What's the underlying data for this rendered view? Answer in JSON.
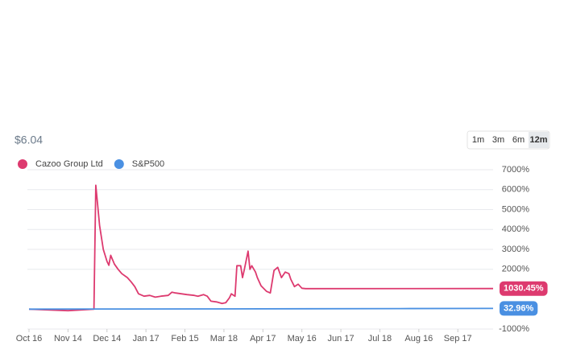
{
  "chart_data": {
    "type": "line",
    "price": "$6.04",
    "ranges": [
      "1m",
      "3m",
      "6m",
      "12m"
    ],
    "active_range": 3,
    "series": [
      {
        "name": "Cazoo Group Ltd",
        "color": "#dd3a6f",
        "x": [
          0,
          21,
          35,
          36,
          38,
          40,
          42,
          43,
          44,
          46,
          48,
          50,
          53,
          55,
          57,
          59,
          62,
          65,
          68,
          71,
          75,
          77,
          79,
          82,
          85,
          89,
          91,
          94,
          96,
          98,
          101,
          104,
          106,
          108,
          109,
          111,
          112,
          114,
          115,
          116,
          118,
          119,
          120,
          122,
          123,
          125,
          128,
          130,
          132,
          134,
          136,
          138,
          140,
          141,
          143,
          145,
          147,
          149,
          250
        ],
        "values": [
          0,
          -80,
          0,
          6220,
          4200,
          3000,
          2400,
          2200,
          2700,
          2260,
          2000,
          1780,
          1580,
          1370,
          1130,
          770,
          650,
          690,
          600,
          650,
          690,
          850,
          810,
          770,
          730,
          690,
          650,
          730,
          650,
          400,
          360,
          280,
          320,
          570,
          770,
          650,
          2180,
          2180,
          1580,
          2000,
          2910,
          2000,
          2180,
          1860,
          1580,
          1170,
          890,
          810,
          1940,
          2100,
          1580,
          1860,
          1780,
          1500,
          1130,
          1250,
          1050,
          1030,
          1030.45
        ],
        "end_label": "1030.45%"
      },
      {
        "name": "S&P500",
        "color": "#4a90e2",
        "x": [
          0,
          50,
          100,
          150,
          200,
          250
        ],
        "values": [
          0,
          5,
          12,
          18,
          25,
          32.96
        ],
        "end_label": "32.96%"
      }
    ],
    "xlim": [
      0,
      250
    ],
    "xticks": [
      {
        "value": 0,
        "label": "Oct 16"
      },
      {
        "value": 21,
        "label": "Nov 14"
      },
      {
        "value": 42,
        "label": "Dec 14"
      },
      {
        "value": 63,
        "label": "Jan 17"
      },
      {
        "value": 84,
        "label": "Feb 15"
      },
      {
        "value": 105,
        "label": "Mar 18"
      },
      {
        "value": 126,
        "label": "Apr 17"
      },
      {
        "value": 147,
        "label": "May 16"
      },
      {
        "value": 168,
        "label": "Jun 17"
      },
      {
        "value": 189,
        "label": "Jul 18"
      },
      {
        "value": 210,
        "label": "Aug 16"
      },
      {
        "value": 231,
        "label": "Sep 17"
      }
    ],
    "ylim": [
      -1000,
      7000
    ],
    "yticks": [
      {
        "value": -1000,
        "label": "-1000%"
      },
      {
        "value": 2000,
        "label": "2000%"
      },
      {
        "value": 3000,
        "label": "3000%"
      },
      {
        "value": 4000,
        "label": "4000%"
      },
      {
        "value": 5000,
        "label": "5000%"
      },
      {
        "value": 6000,
        "label": "6000%"
      },
      {
        "value": 7000,
        "label": "7000%"
      }
    ],
    "grid": true
  }
}
